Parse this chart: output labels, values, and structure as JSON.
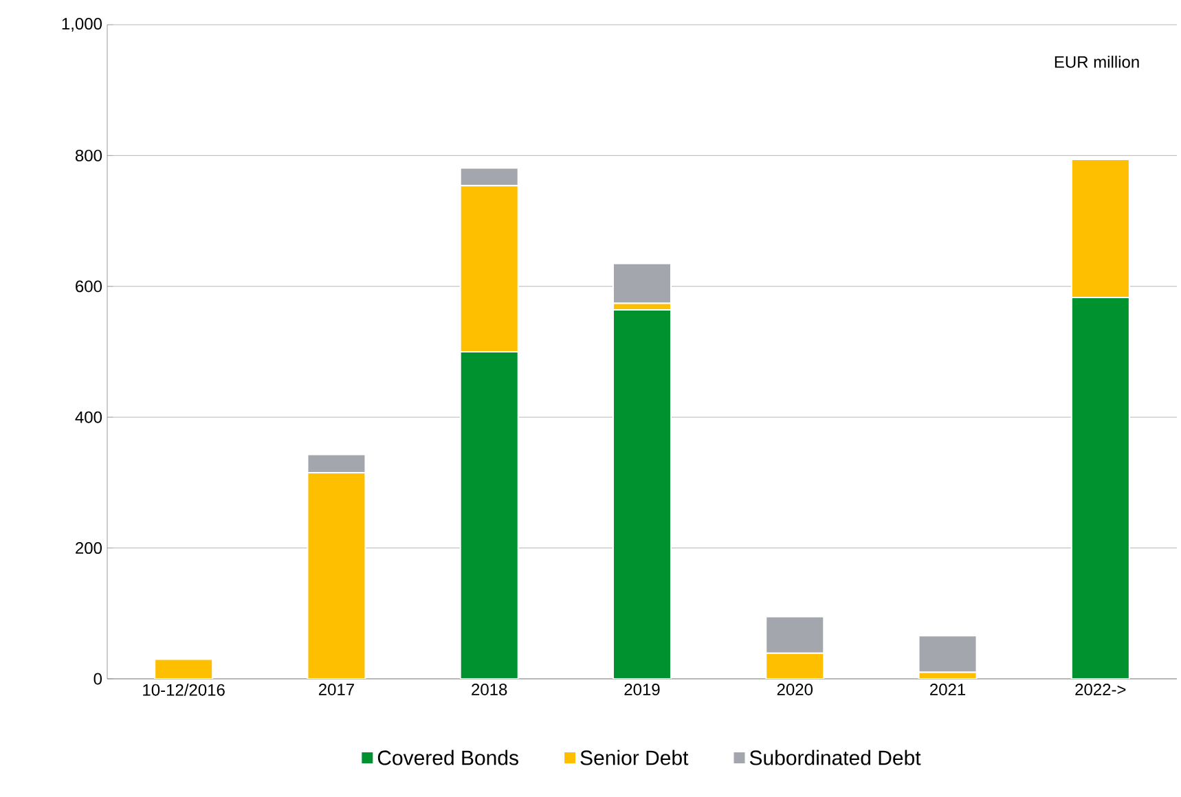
{
  "chart_data": {
    "type": "bar",
    "stacked": true,
    "categories": [
      "10-12/2016",
      "2017",
      "2018",
      "2019",
      "2020",
      "2021",
      "2022->"
    ],
    "series": [
      {
        "name": "Covered Bonds",
        "color": "#00922f",
        "values": [
          0,
          0,
          500,
          564,
          0,
          0,
          583
        ]
      },
      {
        "name": "Senior Debt",
        "color": "#fdbf00",
        "values": [
          30,
          315,
          254,
          10,
          39,
          10,
          211
        ]
      },
      {
        "name": "Subordinated Debt",
        "color": "#a3a6ad",
        "values": [
          0,
          28,
          27,
          61,
          56,
          56,
          0
        ]
      }
    ],
    "ylim": [
      0,
      1000
    ],
    "yticks": [
      0,
      200,
      400,
      600,
      800,
      {
        "value": 1000,
        "label": "1,000"
      }
    ],
    "grid": "y",
    "legend": "bottom",
    "annotations": [
      "EUR million"
    ]
  }
}
